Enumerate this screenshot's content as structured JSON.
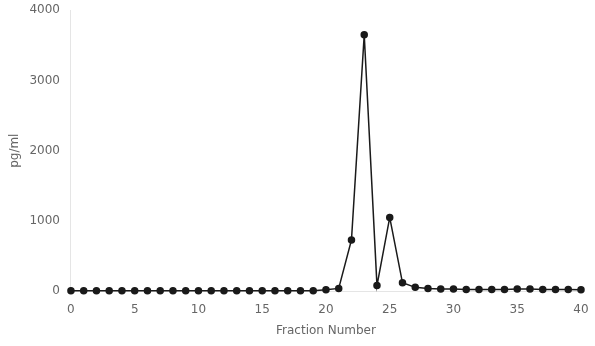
{
  "chart_data": {
    "type": "line",
    "xlabel": "Fraction Number",
    "ylabel": "pg/ml",
    "x": [
      0,
      1,
      2,
      3,
      4,
      5,
      6,
      7,
      8,
      9,
      10,
      11,
      12,
      13,
      14,
      15,
      16,
      17,
      18,
      19,
      20,
      21,
      22,
      23,
      24,
      25,
      26,
      27,
      28,
      29,
      30,
      31,
      32,
      33,
      34,
      35,
      36,
      37,
      38,
      39,
      40
    ],
    "values": [
      5,
      5,
      5,
      5,
      5,
      5,
      5,
      5,
      5,
      5,
      5,
      5,
      5,
      5,
      5,
      5,
      5,
      5,
      5,
      8,
      20,
      40,
      730,
      3650,
      80,
      1050,
      120,
      55,
      40,
      30,
      30,
      25,
      25,
      25,
      25,
      30,
      30,
      25,
      25,
      25,
      20
    ],
    "color": "#1a1a1a",
    "marker": "circle",
    "xlim": [
      0,
      40
    ],
    "ylim": [
      0,
      4000
    ],
    "xticks": [
      0,
      5,
      10,
      15,
      20,
      25,
      30,
      35,
      40
    ],
    "yticks": [
      0,
      1000,
      2000,
      3000,
      4000
    ],
    "grid": false
  }
}
